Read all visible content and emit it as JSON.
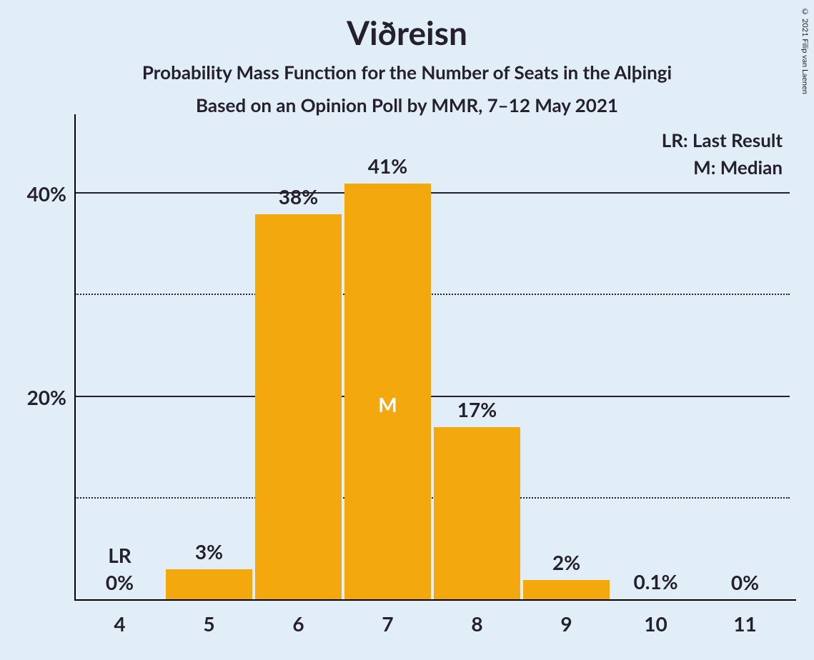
{
  "background_color": "#e1edf7",
  "text_color": "#25212c",
  "copyright": "© 2021 Filip van Laenen",
  "title": "Viðreisn",
  "subtitle1": "Probability Mass Function for the Number of Seats in the Alþingi",
  "subtitle2": "Based on an Opinion Poll by MMR, 7–12 May 2021",
  "legend": {
    "lr": "LR: Last Result",
    "m": "M: Median"
  },
  "chart": {
    "type": "bar",
    "bar_color": "#f3a90e",
    "grid_major_color": "#25212c",
    "grid_minor_color": "#25212c",
    "ylim": [
      0,
      45
    ],
    "y_major_ticks": [
      20,
      40
    ],
    "y_minor_ticks": [
      10,
      30
    ],
    "y_tick_labels": {
      "20": "20%",
      "40": "40%"
    },
    "x_categories": [
      4,
      5,
      6,
      7,
      8,
      9,
      10,
      11
    ],
    "values": [
      0,
      3,
      38,
      41,
      17,
      2,
      0.1,
      0
    ],
    "value_labels": [
      "0%",
      "3%",
      "38%",
      "41%",
      "17%",
      "2%",
      "0.1%",
      "0%"
    ],
    "last_result_index": 0,
    "last_result_label": "LR",
    "median_index": 3,
    "median_label": "M",
    "bar_width_ratio": 0.97
  }
}
